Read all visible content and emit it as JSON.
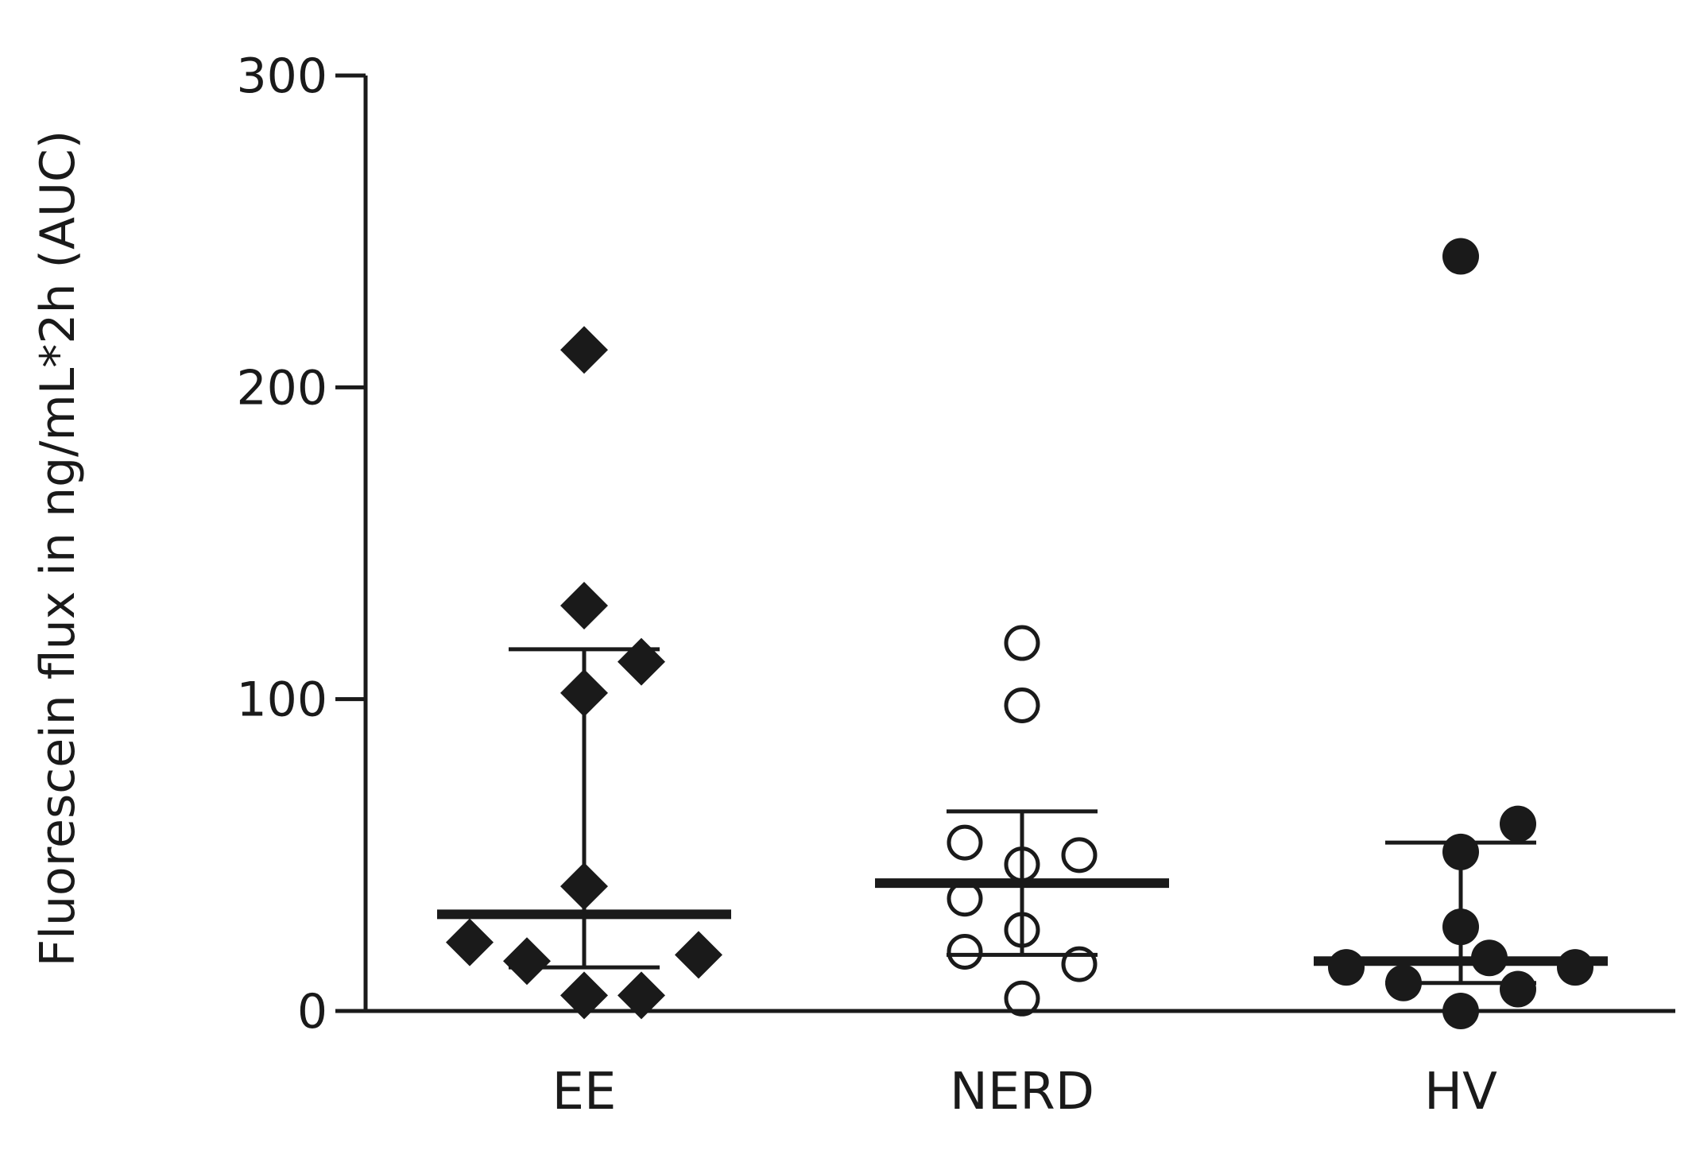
{
  "chart_data": {
    "type": "scatter",
    "ylabel": "Fluorescein flux in ng/mL*2h (AUC)",
    "xlabel": "",
    "title": "",
    "categories": [
      "EE",
      "NERD",
      "HV"
    ],
    "ylim": [
      0,
      300
    ],
    "yticks": [
      0,
      100,
      200,
      300
    ],
    "grid": false,
    "groups": [
      {
        "category": "EE",
        "marker": "diamond-filled",
        "median": 31,
        "iqr": [
          14,
          116
        ],
        "points": [
          {
            "offset": 0,
            "value": 212
          },
          {
            "offset": 0,
            "value": 130
          },
          {
            "offset": 1,
            "value": 112
          },
          {
            "offset": 0,
            "value": 102
          },
          {
            "offset": 0,
            "value": 40
          },
          {
            "offset": -2,
            "value": 22
          },
          {
            "offset": -1,
            "value": 16
          },
          {
            "offset": 2,
            "value": 18
          },
          {
            "offset": 0,
            "value": 5
          },
          {
            "offset": 1,
            "value": 5
          }
        ]
      },
      {
        "category": "NERD",
        "marker": "circle-open",
        "median": 41,
        "iqr": [
          18,
          64
        ],
        "points": [
          {
            "offset": 0,
            "value": 118
          },
          {
            "offset": 0,
            "value": 98
          },
          {
            "offset": -1,
            "value": 54
          },
          {
            "offset": 1,
            "value": 50
          },
          {
            "offset": 0,
            "value": 47
          },
          {
            "offset": -1,
            "value": 36
          },
          {
            "offset": 0,
            "value": 26
          },
          {
            "offset": -1,
            "value": 19
          },
          {
            "offset": 1,
            "value": 15
          },
          {
            "offset": 0,
            "value": 4
          }
        ]
      },
      {
        "category": "HV",
        "marker": "circle-filled",
        "median": 16,
        "iqr": [
          9,
          54
        ],
        "points": [
          {
            "offset": 0,
            "value": 242
          },
          {
            "offset": 1,
            "value": 60
          },
          {
            "offset": 0,
            "value": 51
          },
          {
            "offset": 0,
            "value": 27
          },
          {
            "offset": 0.5,
            "value": 17
          },
          {
            "offset": -2,
            "value": 14
          },
          {
            "offset": 2,
            "value": 14
          },
          {
            "offset": -1,
            "value": 9
          },
          {
            "offset": 1,
            "value": 7
          },
          {
            "offset": 0,
            "value": 0
          }
        ]
      }
    ],
    "colors": {
      "marker": "#1a1a1a",
      "axis": "#1a1a1a",
      "background": "#ffffff"
    }
  }
}
